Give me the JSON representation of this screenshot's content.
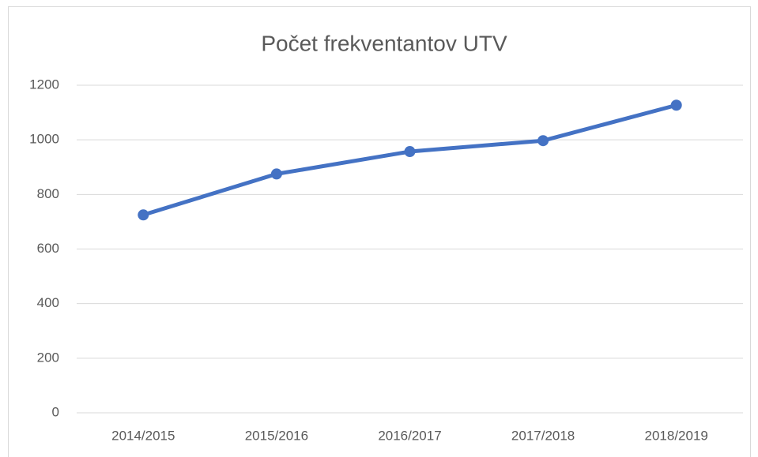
{
  "chart_data": {
    "type": "line",
    "title": "Počet frekventantov UTV",
    "categories": [
      "2014/2015",
      "2015/2016",
      "2016/2017",
      "2017/2018",
      "2018/2019"
    ],
    "series": [
      {
        "name": "Počet frekventantov",
        "color": "#4472c4",
        "values": [
          725,
          875,
          957,
          997,
          1127
        ]
      }
    ],
    "ylim": [
      0,
      1200
    ],
    "yticks": [
      0,
      200,
      400,
      600,
      800,
      1000,
      1200
    ],
    "grid": true
  }
}
